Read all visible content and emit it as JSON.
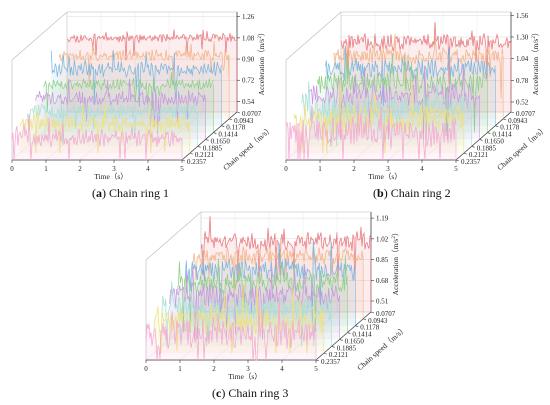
{
  "chart_data": [
    {
      "type": "line",
      "caption_letter": "a",
      "caption_text": " Chain ring 1",
      "xlabel": "Time（s）",
      "ylabel": "Chain speed（m/s）",
      "zlabel_text": "Acceleration（m/s",
      "zlabel_sup": "2",
      "zlabel_tail": "）",
      "x_ticks": [
        "0",
        "1",
        "2",
        "3",
        "4",
        "5"
      ],
      "xlim": [
        0,
        5
      ],
      "y_ticks": [
        "0.0707",
        "0.0943",
        "0.1178",
        "0.1414",
        "0.1650",
        "0.1885",
        "0.2121",
        "0.2357"
      ],
      "z_ticks": [
        "0.54",
        "0.72",
        "0.90",
        "1.08",
        "1.26"
      ],
      "zlim": [
        0.45,
        1.3
      ],
      "series": [
        {
          "speed": 0.0707,
          "base": 1.08,
          "amp": 0.03,
          "color": "#e8777d"
        },
        {
          "speed": 0.0943,
          "base": 0.99,
          "amp": 0.04,
          "color": "#f2b48a"
        },
        {
          "speed": 0.1178,
          "base": 0.93,
          "amp": 0.05,
          "color": "#7bb7e0"
        },
        {
          "speed": 0.1414,
          "base": 0.86,
          "amp": 0.04,
          "color": "#8fd08a"
        },
        {
          "speed": 0.165,
          "base": 0.8,
          "amp": 0.05,
          "color": "#c79ae0"
        },
        {
          "speed": 0.1885,
          "base": 0.75,
          "amp": 0.05,
          "color": "#a7e0d6"
        },
        {
          "speed": 0.2121,
          "base": 0.7,
          "amp": 0.06,
          "color": "#f0e07a"
        },
        {
          "speed": 0.2357,
          "base": 0.64,
          "amp": 0.06,
          "color": "#f5a8d0"
        }
      ]
    },
    {
      "type": "line",
      "caption_letter": "b",
      "caption_text": " Chain ring 2",
      "xlabel": "Time（s）",
      "ylabel": "Chain speed（m/s）",
      "zlabel_text": "Acceleration（m/s",
      "zlabel_sup": "2",
      "zlabel_tail": "）",
      "x_ticks": [
        "0",
        "1",
        "2",
        "3",
        "4",
        "5"
      ],
      "xlim": [
        0,
        5
      ],
      "y_ticks": [
        "0.0707",
        "0.0943",
        "0.1178",
        "0.1414",
        "0.1650",
        "0.1885",
        "0.2121",
        "0.2357"
      ],
      "z_ticks": [
        "0.52",
        "0.78",
        "1.04",
        "1.30",
        "1.56"
      ],
      "zlim": [
        0.4,
        1.6
      ],
      "series": [
        {
          "speed": 0.0707,
          "base": 1.24,
          "amp": 0.08,
          "color": "#e8777d"
        },
        {
          "speed": 0.0943,
          "base": 1.16,
          "amp": 0.08,
          "color": "#f2b48a"
        },
        {
          "speed": 0.1178,
          "base": 1.08,
          "amp": 0.1,
          "color": "#7bb7e0"
        },
        {
          "speed": 0.1414,
          "base": 1.0,
          "amp": 0.11,
          "color": "#8fd08a"
        },
        {
          "speed": 0.165,
          "base": 0.93,
          "amp": 0.12,
          "color": "#c79ae0"
        },
        {
          "speed": 0.1885,
          "base": 0.87,
          "amp": 0.13,
          "color": "#a7e0d6"
        },
        {
          "speed": 0.2121,
          "base": 0.81,
          "amp": 0.14,
          "color": "#f0e07a"
        },
        {
          "speed": 0.2357,
          "base": 0.74,
          "amp": 0.15,
          "color": "#f5a8d0"
        }
      ]
    },
    {
      "type": "line",
      "caption_letter": "c",
      "caption_text": " Chain ring 3",
      "xlabel": "Time（s）",
      "ylabel": "Chain speed（m/s）",
      "zlabel_text": "Acceleration（m/s",
      "zlabel_sup": "2",
      "zlabel_tail": "）",
      "x_ticks": [
        "0",
        "1",
        "2",
        "3",
        "4",
        "5"
      ],
      "xlim": [
        0,
        5
      ],
      "y_ticks": [
        "0.0707",
        "0.0943",
        "0.1178",
        "0.1414",
        "0.1650",
        "0.1885",
        "0.2121",
        "0.2357"
      ],
      "z_ticks": [
        "0.51",
        "0.68",
        "0.85",
        "1.02",
        "1.19"
      ],
      "zlim": [
        0.42,
        1.24
      ],
      "series": [
        {
          "speed": 0.0707,
          "base": 1.0,
          "amp": 0.06,
          "color": "#e8777d"
        },
        {
          "speed": 0.0943,
          "base": 0.94,
          "amp": 0.06,
          "color": "#f2b48a"
        },
        {
          "speed": 0.1178,
          "base": 0.88,
          "amp": 0.07,
          "color": "#7bb7e0"
        },
        {
          "speed": 0.1414,
          "base": 0.83,
          "amp": 0.07,
          "color": "#8fd08a"
        },
        {
          "speed": 0.165,
          "base": 0.78,
          "amp": 0.08,
          "color": "#c79ae0"
        },
        {
          "speed": 0.1885,
          "base": 0.73,
          "amp": 0.08,
          "color": "#a7e0d6"
        },
        {
          "speed": 0.2121,
          "base": 0.69,
          "amp": 0.09,
          "color": "#f0e07a"
        },
        {
          "speed": 0.2357,
          "base": 0.64,
          "amp": 0.1,
          "color": "#f5a8d0"
        }
      ]
    }
  ]
}
